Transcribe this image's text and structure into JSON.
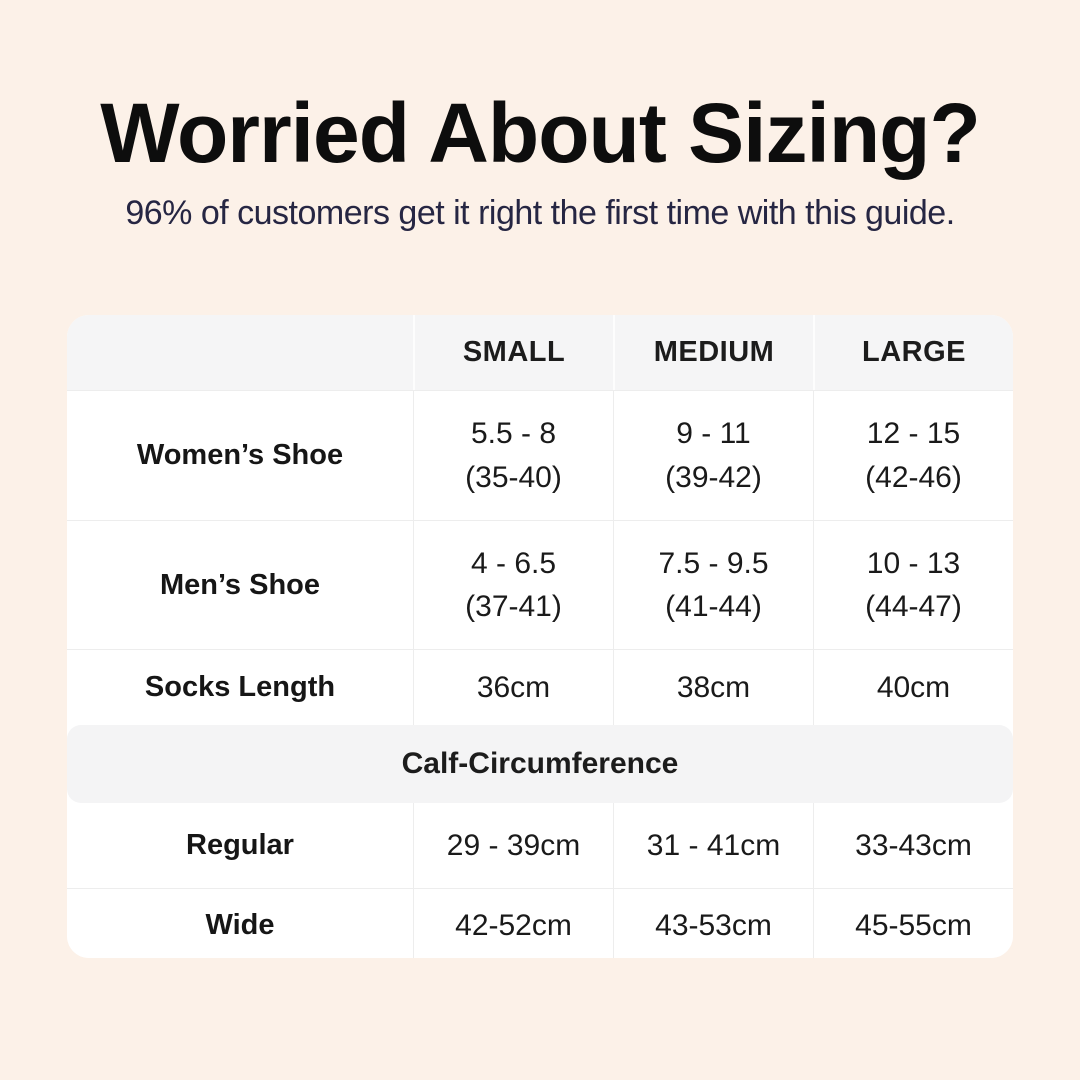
{
  "page": {
    "background_color": "#fcf1e8",
    "title": "Worried About Sizing?",
    "subtitle": "96% of customers get it right the first time with this guide.",
    "title_color": "#0d0d0d",
    "subtitle_color": "#262643"
  },
  "size_table": {
    "headers": [
      "",
      "SMALL",
      "MEDIUM",
      "LARGE"
    ],
    "rows": [
      {
        "label": "Women’s Shoe",
        "cells": [
          {
            "line1": "5.5 - 8",
            "line2": "(35-40)"
          },
          {
            "line1": "9 - 11",
            "line2": "(39-42)"
          },
          {
            "line1": "12 - 15",
            "line2": "(42-46)"
          }
        ]
      },
      {
        "label": "Men’s Shoe",
        "cells": [
          {
            "line1": "4 - 6.5",
            "line2": "(37-41)"
          },
          {
            "line1": "7.5 - 9.5",
            "line2": "(41-44)"
          },
          {
            "line1": "10 - 13",
            "line2": "(44-47)"
          }
        ]
      },
      {
        "label": "Socks Length",
        "cells": [
          {
            "line1": "36cm"
          },
          {
            "line1": "38cm"
          },
          {
            "line1": "40cm"
          }
        ]
      }
    ],
    "section_header": "Calf-Circumference",
    "calf_rows": [
      {
        "label": "Regular",
        "cells": [
          {
            "line1": "29 - 39cm"
          },
          {
            "line1": "31 - 41cm"
          },
          {
            "line1": "33-43cm"
          }
        ]
      },
      {
        "label": "Wide",
        "cells": [
          {
            "line1": "42-52cm"
          },
          {
            "line1": "43-53cm"
          },
          {
            "line1": "45-55cm"
          }
        ]
      }
    ],
    "colors": {
      "table_background": "#ffffff",
      "header_background": "#f5f5f6",
      "section_band_background": "#f4f4f5",
      "border": "#ededed",
      "text": "#1a1a1a"
    }
  },
  "chart_data": {
    "type": "table",
    "title": "Worried About Sizing?",
    "subtitle": "96% of customers get it right the first time with this guide.",
    "columns": [
      "",
      "SMALL",
      "MEDIUM",
      "LARGE"
    ],
    "rows": [
      [
        "Women’s Shoe",
        "5.5 - 8 (35-40)",
        "9 - 11 (39-42)",
        "12 - 15 (42-46)"
      ],
      [
        "Men’s Shoe",
        "4 - 6.5 (37-41)",
        "7.5 - 9.5 (41-44)",
        "10 - 13 (44-47)"
      ],
      [
        "Socks Length",
        "36cm",
        "38cm",
        "40cm"
      ],
      [
        "Calf-Circumference",
        "",
        "",
        ""
      ],
      [
        "Regular",
        "29 - 39cm",
        "31 - 41cm",
        "33-43cm"
      ],
      [
        "Wide",
        "42-52cm",
        "43-53cm",
        "45-55cm"
      ]
    ],
    "legend_position": "none",
    "grid": true
  }
}
